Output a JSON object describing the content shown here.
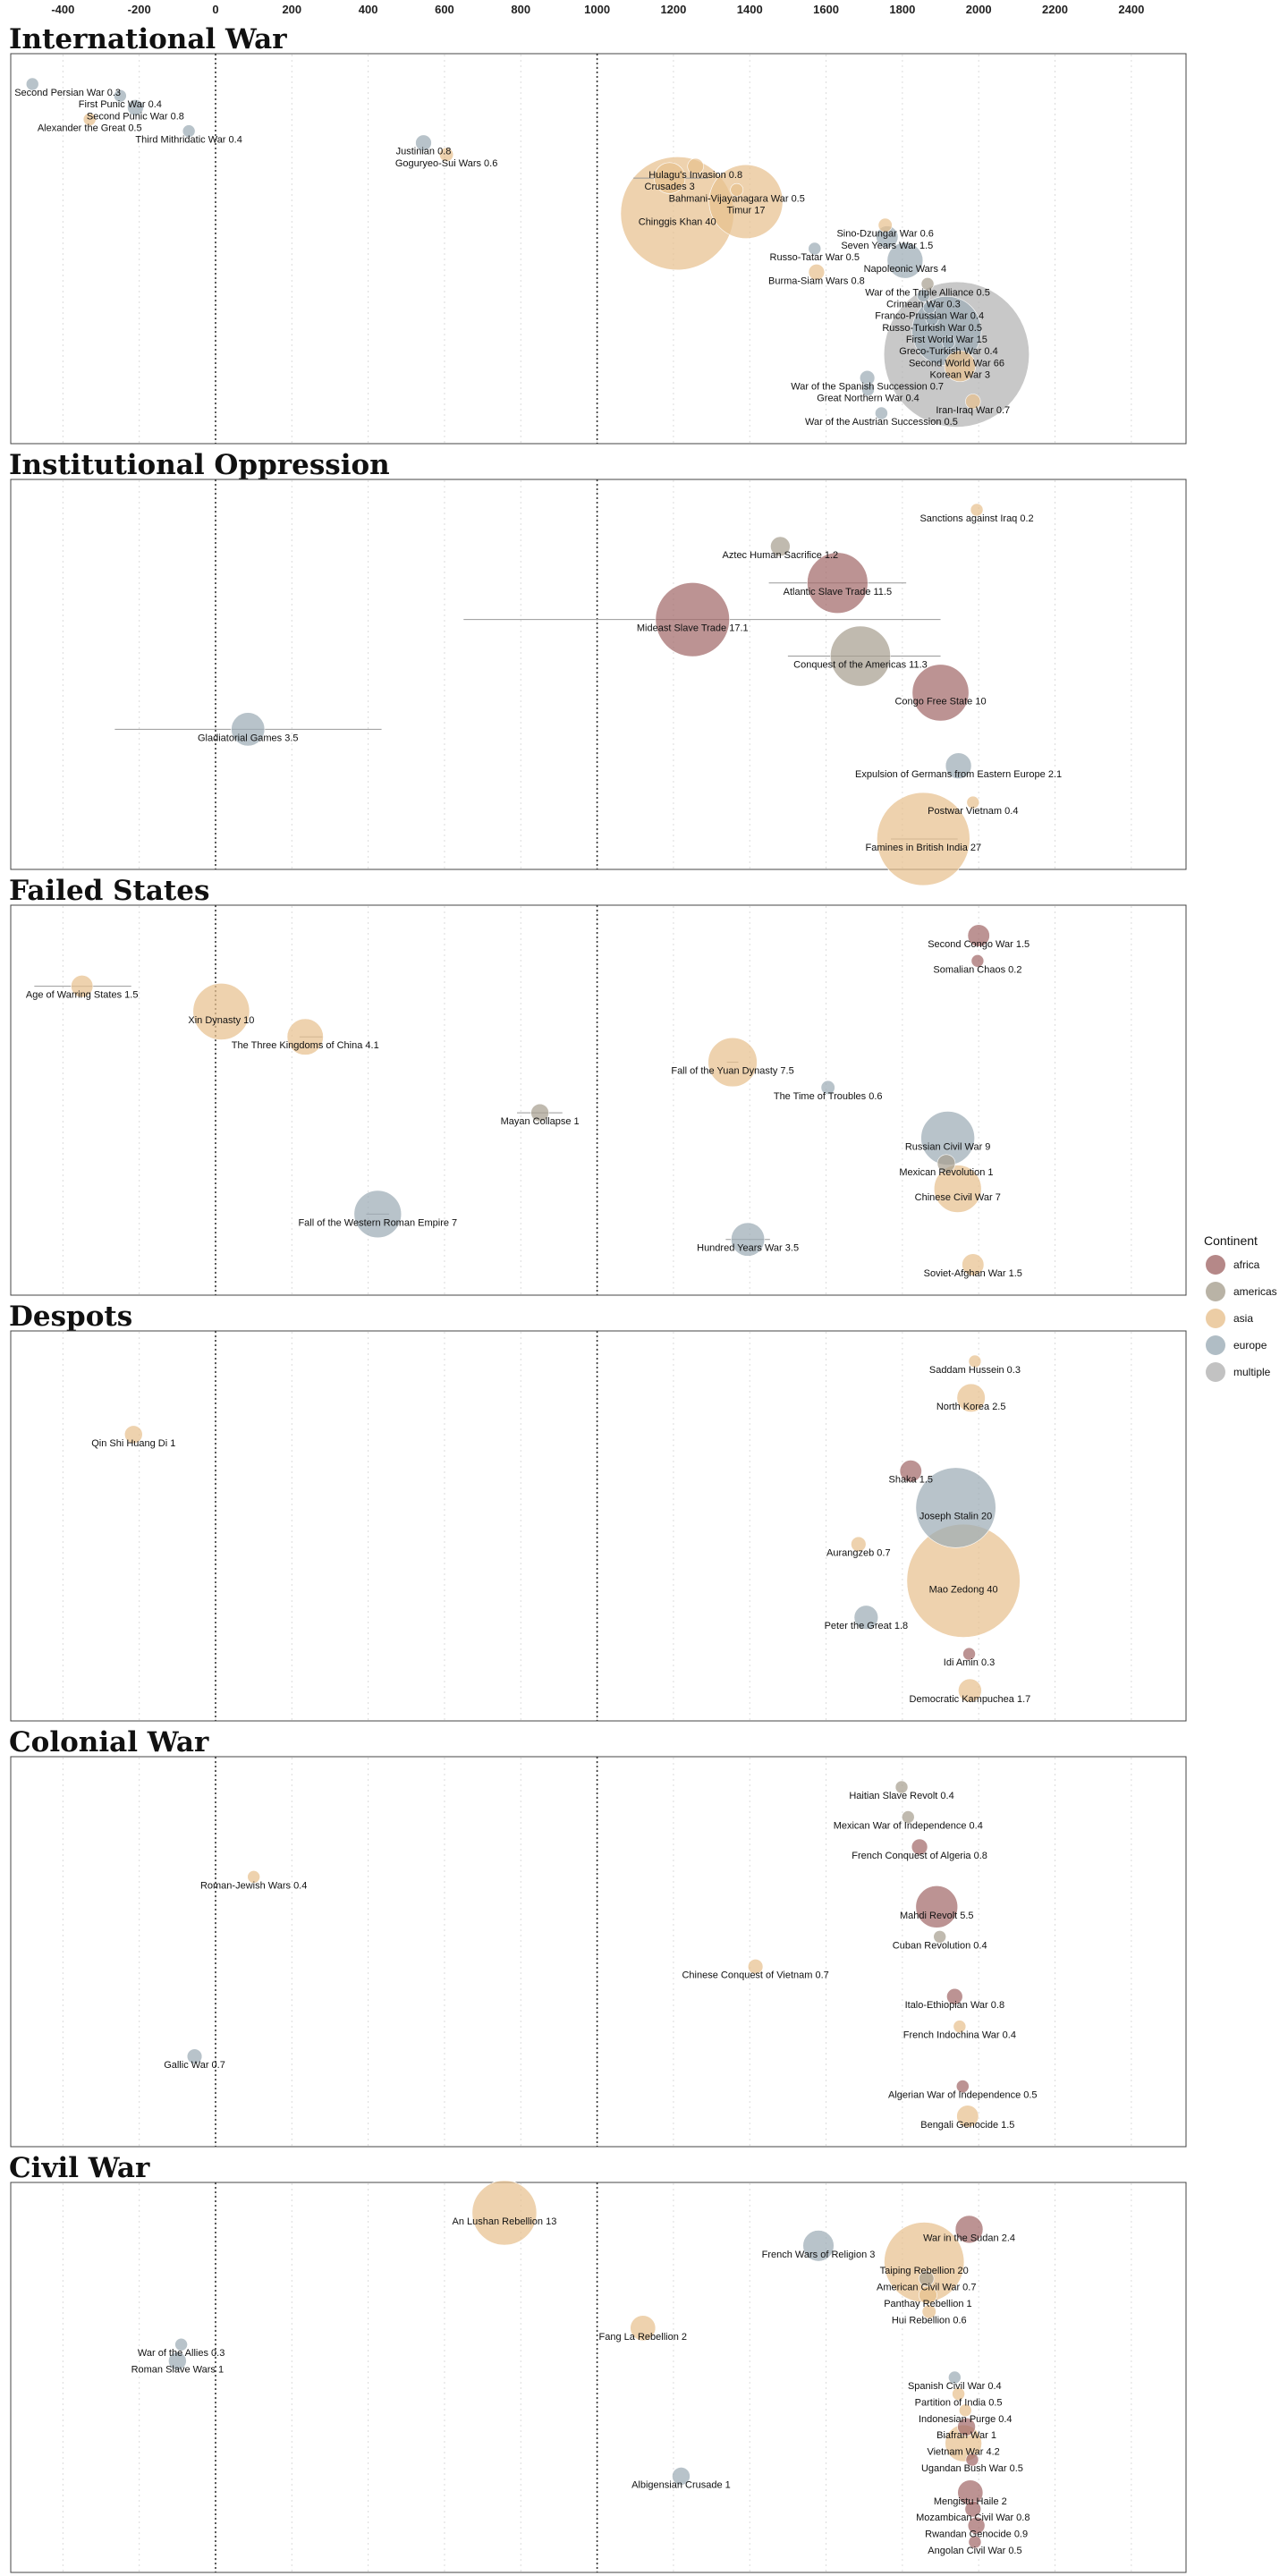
{
  "chart_data": {
    "type": "scatter",
    "subtype": "bubble",
    "x_ticks": [
      -400,
      -200,
      0,
      200,
      400,
      600,
      800,
      1000,
      1200,
      1400,
      1600,
      1800,
      2000,
      2200,
      2400
    ],
    "xlim": [
      -530,
      2570
    ],
    "reference_lines": [
      0,
      1000
    ],
    "grid": true,
    "legend": {
      "title": "Continent",
      "position": "right",
      "entries": [
        {
          "name": "africa",
          "color": "#a26a6a"
        },
        {
          "name": "americas",
          "color": "#a8a090"
        },
        {
          "name": "asia",
          "color": "#e7c08f"
        },
        {
          "name": "europe",
          "color": "#9cacb6"
        },
        {
          "name": "multiple",
          "color": "#b3b3b3"
        }
      ]
    },
    "panels": [
      {
        "title": "International War",
        "events": [
          {
            "label": "Second Persian War 0.3",
            "x": -480,
            "cont": "europe",
            "v": 0.3
          },
          {
            "label": "First Punic War 0.4",
            "x": -250,
            "cont": "europe",
            "v": 0.4
          },
          {
            "label": "Second Punic War 0.8",
            "x": -210,
            "cont": "europe",
            "v": 0.8
          },
          {
            "label": "Alexander the Great 0.5",
            "x": -330,
            "cont": "asia",
            "v": 0.5
          },
          {
            "label": "Third Mithridatic War 0.4",
            "x": -70,
            "cont": "europe",
            "v": 0.4
          },
          {
            "label": "Justinian 0.8",
            "x": 545,
            "cont": "europe",
            "v": 0.8
          },
          {
            "label": "Goguryeo-Sui Wars 0.6",
            "x": 605,
            "cont": "asia",
            "v": 0.6
          },
          {
            "label": "Hulagu's Invasion 0.8",
            "x": 1258,
            "cont": "asia",
            "v": 0.8
          },
          {
            "label": "Crusades 3",
            "x": 1190,
            "range": [
              1095,
              1291
            ],
            "cont": "asia",
            "v": 3
          },
          {
            "label": "Bahmani-Vijayanagara War 0.5",
            "x": 1366,
            "cont": "asia",
            "v": 0.5
          },
          {
            "label": "Timur 17",
            "x": 1390,
            "cont": "asia",
            "v": 17
          },
          {
            "label": "Chinggis Khan 40",
            "x": 1210,
            "cont": "asia",
            "v": 40
          },
          {
            "label": "Sino-Dzungar War 0.6",
            "x": 1755,
            "cont": "asia",
            "v": 0.6
          },
          {
            "label": "Seven Years War 1.5",
            "x": 1760,
            "cont": "europe",
            "v": 1.5
          },
          {
            "label": "Russo-Tatar War 0.5",
            "x": 1570,
            "cont": "europe",
            "v": 0.5
          },
          {
            "label": "Napoleonic Wars 4",
            "x": 1807,
            "cont": "europe",
            "v": 4
          },
          {
            "label": "Burma-Siam Wars 0.8",
            "x": 1575,
            "cont": "asia",
            "v": 0.8
          },
          {
            "label": "War of the Triple Alliance 0.5",
            "x": 1866,
            "cont": "americas",
            "v": 0.5
          },
          {
            "label": "Crimean War 0.3",
            "x": 1855,
            "cont": "europe",
            "v": 0.3
          },
          {
            "label": "Franco-Prussian War 0.4",
            "x": 1871,
            "cont": "europe",
            "v": 0.4
          },
          {
            "label": "Russo-Turkish War 0.5",
            "x": 1878,
            "cont": "europe",
            "v": 0.5
          },
          {
            "label": "First World War 15",
            "x": 1916,
            "cont": "europe",
            "v": 15
          },
          {
            "label": "Greco-Turkish War 0.4",
            "x": 1921,
            "cont": "europe",
            "v": 0.4
          },
          {
            "label": "Second World War 66",
            "x": 1942,
            "cont": "multiple",
            "v": 66
          },
          {
            "label": "Korean War 3",
            "x": 1951,
            "cont": "asia",
            "v": 3
          },
          {
            "label": "War of the Spanish Succession 0.7",
            "x": 1708,
            "cont": "europe",
            "v": 0.7
          },
          {
            "label": "Great Northern War 0.4",
            "x": 1710,
            "cont": "europe",
            "v": 0.4
          },
          {
            "label": "Iran-Iraq War 0.7",
            "x": 1985,
            "cont": "asia",
            "v": 0.7
          },
          {
            "label": "War of the Austrian Succession 0.5",
            "x": 1745,
            "cont": "europe",
            "v": 0.5
          }
        ]
      },
      {
        "title": "Institutional Oppression",
        "events": [
          {
            "label": "Sanctions against Iraq 0.2",
            "x": 1995,
            "cont": "asia",
            "v": 0.2
          },
          {
            "label": "Aztec Human Sacrifice 1.2",
            "x": 1480,
            "cont": "americas",
            "v": 1.2
          },
          {
            "label": "Atlantic Slave Trade 11.5",
            "x": 1630,
            "range": [
              1450,
              1810
            ],
            "cont": "africa",
            "v": 11.5
          },
          {
            "label": "Mideast Slave Trade 17.1",
            "x": 1250,
            "range": [
              650,
              1900
            ],
            "cont": "africa",
            "v": 17.1
          },
          {
            "label": "Conquest of the Americas 11.3",
            "x": 1690,
            "range": [
              1500,
              1900
            ],
            "cont": "americas",
            "v": 11.3
          },
          {
            "label": "Congo Free State 10",
            "x": 1900,
            "cont": "africa",
            "v": 10
          },
          {
            "label": "Gladiatorial Games 3.5",
            "x": 85,
            "range": [
              -264,
              435
            ],
            "cont": "europe",
            "v": 3.5
          },
          {
            "label": "Expulsion of Germans from Eastern Europe 2.1",
            "x": 1947,
            "cont": "europe",
            "v": 2.1
          },
          {
            "label": "Postwar Vietnam 0.4",
            "x": 1985,
            "cont": "asia",
            "v": 0.4
          },
          {
            "label": "Famines in British India 27",
            "x": 1855,
            "range": [
              1770,
              1945
            ],
            "cont": "asia",
            "v": 27
          }
        ]
      },
      {
        "title": "Failed States",
        "events": [
          {
            "label": "Second Congo War 1.5",
            "x": 2000,
            "cont": "africa",
            "v": 1.5
          },
          {
            "label": "Somalian Chaos 0.2",
            "x": 1997,
            "cont": "africa",
            "v": 0.2
          },
          {
            "label": "Age of Warring States 1.5",
            "x": -350,
            "range": [
              -475,
              -221
            ],
            "cont": "asia",
            "v": 1.5
          },
          {
            "label": "Xin Dynasty 10",
            "x": 15,
            "cont": "asia",
            "v": 10
          },
          {
            "label": "The Three Kingdoms of China 4.1",
            "x": 235,
            "range": [
              220,
              280
            ],
            "cont": "asia",
            "v": 4.1
          },
          {
            "label": "Fall of the Yuan Dynasty 7.5",
            "x": 1355,
            "range": [
              1340,
              1370
            ],
            "cont": "asia",
            "v": 7.5
          },
          {
            "label": "The Time of Troubles 0.6",
            "x": 1605,
            "cont": "europe",
            "v": 0.6
          },
          {
            "label": "Mayan Collapse 1",
            "x": 850,
            "range": [
              790,
              909
            ],
            "cont": "americas",
            "v": 1
          },
          {
            "label": "Russian Civil War 9",
            "x": 1919,
            "cont": "europe",
            "v": 9
          },
          {
            "label": "Mexican Revolution 1",
            "x": 1915,
            "cont": "americas",
            "v": 1
          },
          {
            "label": "Chinese Civil War 7",
            "x": 1945,
            "cont": "asia",
            "v": 7
          },
          {
            "label": "Fall of the Western Roman Empire 7",
            "x": 425,
            "range": [
              395,
              455
            ],
            "cont": "europe",
            "v": 7
          },
          {
            "label": "Hundred Years War 3.5",
            "x": 1395,
            "range": [
              1337,
              1453
            ],
            "cont": "europe",
            "v": 3.5
          },
          {
            "label": "Soviet-Afghan War 1.5",
            "x": 1985,
            "cont": "asia",
            "v": 1.5
          }
        ]
      },
      {
        "title": "Despots",
        "events": [
          {
            "label": "Saddam Hussein 0.3",
            "x": 1990,
            "cont": "asia",
            "v": 0.3
          },
          {
            "label": "North Korea 2.5",
            "x": 1980,
            "cont": "asia",
            "v": 2.5
          },
          {
            "label": "Qin Shi Huang Di 1",
            "x": -215,
            "cont": "asia",
            "v": 1
          },
          {
            "label": "Shaka 1.5",
            "x": 1822,
            "cont": "africa",
            "v": 1.5
          },
          {
            "label": "Joseph Stalin 20",
            "x": 1940,
            "cont": "europe",
            "v": 20
          },
          {
            "label": "Aurangzeb 0.7",
            "x": 1685,
            "cont": "asia",
            "v": 0.7
          },
          {
            "label": "Mao Zedong 40",
            "x": 1960,
            "cont": "asia",
            "v": 40
          },
          {
            "label": "Peter the Great 1.8",
            "x": 1705,
            "cont": "europe",
            "v": 1.8
          },
          {
            "label": "Idi Amin 0.3",
            "x": 1975,
            "cont": "africa",
            "v": 0.3
          },
          {
            "label": "Democratic Kampuchea 1.7",
            "x": 1977,
            "cont": "asia",
            "v": 1.7
          }
        ]
      },
      {
        "title": "Colonial War",
        "events": [
          {
            "label": "Haitian Slave Revolt 0.4",
            "x": 1798,
            "cont": "americas",
            "v": 0.4
          },
          {
            "label": "Mexican War of Independence 0.4",
            "x": 1815,
            "cont": "americas",
            "v": 0.4
          },
          {
            "label": "French Conquest of Algeria 0.8",
            "x": 1845,
            "cont": "africa",
            "v": 0.8
          },
          {
            "label": "Roman-Jewish Wars 0.4",
            "x": 100,
            "cont": "asia",
            "v": 0.4
          },
          {
            "label": "Mahdi Revolt 5.5",
            "x": 1890,
            "cont": "africa",
            "v": 5.5
          },
          {
            "label": "Cuban Revolution 0.4",
            "x": 1898,
            "cont": "americas",
            "v": 0.4
          },
          {
            "label": "Chinese Conquest of Vietnam 0.7",
            "x": 1415,
            "cont": "asia",
            "v": 0.7
          },
          {
            "label": "Italo-Ethiopian War 0.8",
            "x": 1937,
            "cont": "africa",
            "v": 0.8
          },
          {
            "label": "French Indochina War 0.4",
            "x": 1950,
            "cont": "asia",
            "v": 0.4
          },
          {
            "label": "Gallic War 0.7",
            "x": -55,
            "cont": "europe",
            "v": 0.7
          },
          {
            "label": "Algerian War of Independence 0.5",
            "x": 1958,
            "cont": "africa",
            "v": 0.5
          },
          {
            "label": "Bengali Genocide 1.5",
            "x": 1971,
            "cont": "asia",
            "v": 1.5
          }
        ]
      },
      {
        "title": "Civil War",
        "events": [
          {
            "label": "An Lushan Rebellion 13",
            "x": 757,
            "cont": "asia",
            "v": 13
          },
          {
            "label": "War in the Sudan 2.4",
            "x": 1975,
            "cont": "africa",
            "v": 2.4
          },
          {
            "label": "French Wars of Religion 3",
            "x": 1580,
            "cont": "europe",
            "v": 3
          },
          {
            "label": "Taiping Rebellion 20",
            "x": 1857,
            "cont": "asia",
            "v": 20
          },
          {
            "label": "American Civil War 0.7",
            "x": 1863,
            "cont": "americas",
            "v": 0.7
          },
          {
            "label": "Panthay Rebellion 1",
            "x": 1867,
            "cont": "asia",
            "v": 1
          },
          {
            "label": "Hui Rebellion 0.6",
            "x": 1870,
            "cont": "asia",
            "v": 0.6
          },
          {
            "label": "Fang La Rebellion 2",
            "x": 1120,
            "cont": "asia",
            "v": 2
          },
          {
            "label": "War of the Allies 0.3",
            "x": -90,
            "cont": "europe",
            "v": 0.3
          },
          {
            "label": "Roman Slave Wars 1",
            "x": -100,
            "cont": "europe",
            "v": 1
          },
          {
            "label": "Spanish Civil War 0.4",
            "x": 1937,
            "cont": "europe",
            "v": 0.4
          },
          {
            "label": "Partition of India 0.5",
            "x": 1947,
            "cont": "asia",
            "v": 0.5
          },
          {
            "label": "Indonesian Purge 0.4",
            "x": 1965,
            "cont": "asia",
            "v": 0.4
          },
          {
            "label": "Biafran War 1",
            "x": 1968,
            "cont": "africa",
            "v": 1
          },
          {
            "label": "Vietnam War 4.2",
            "x": 1960,
            "cont": "asia",
            "v": 4.2
          },
          {
            "label": "Ugandan Bush War 0.5",
            "x": 1983,
            "cont": "africa",
            "v": 0.5
          },
          {
            "label": "Albigensian Crusade 1",
            "x": 1220,
            "cont": "europe",
            "v": 1
          },
          {
            "label": "Mengistu Haile 2",
            "x": 1978,
            "cont": "africa",
            "v": 2
          },
          {
            "label": "Mozambican Civil War 0.8",
            "x": 1985,
            "cont": "africa",
            "v": 0.8
          },
          {
            "label": "Rwandan Genocide 0.9",
            "x": 1994,
            "cont": "africa",
            "v": 0.9
          },
          {
            "label": "Angolan Civil War 0.5",
            "x": 1990,
            "cont": "africa",
            "v": 0.5
          }
        ]
      }
    ]
  }
}
